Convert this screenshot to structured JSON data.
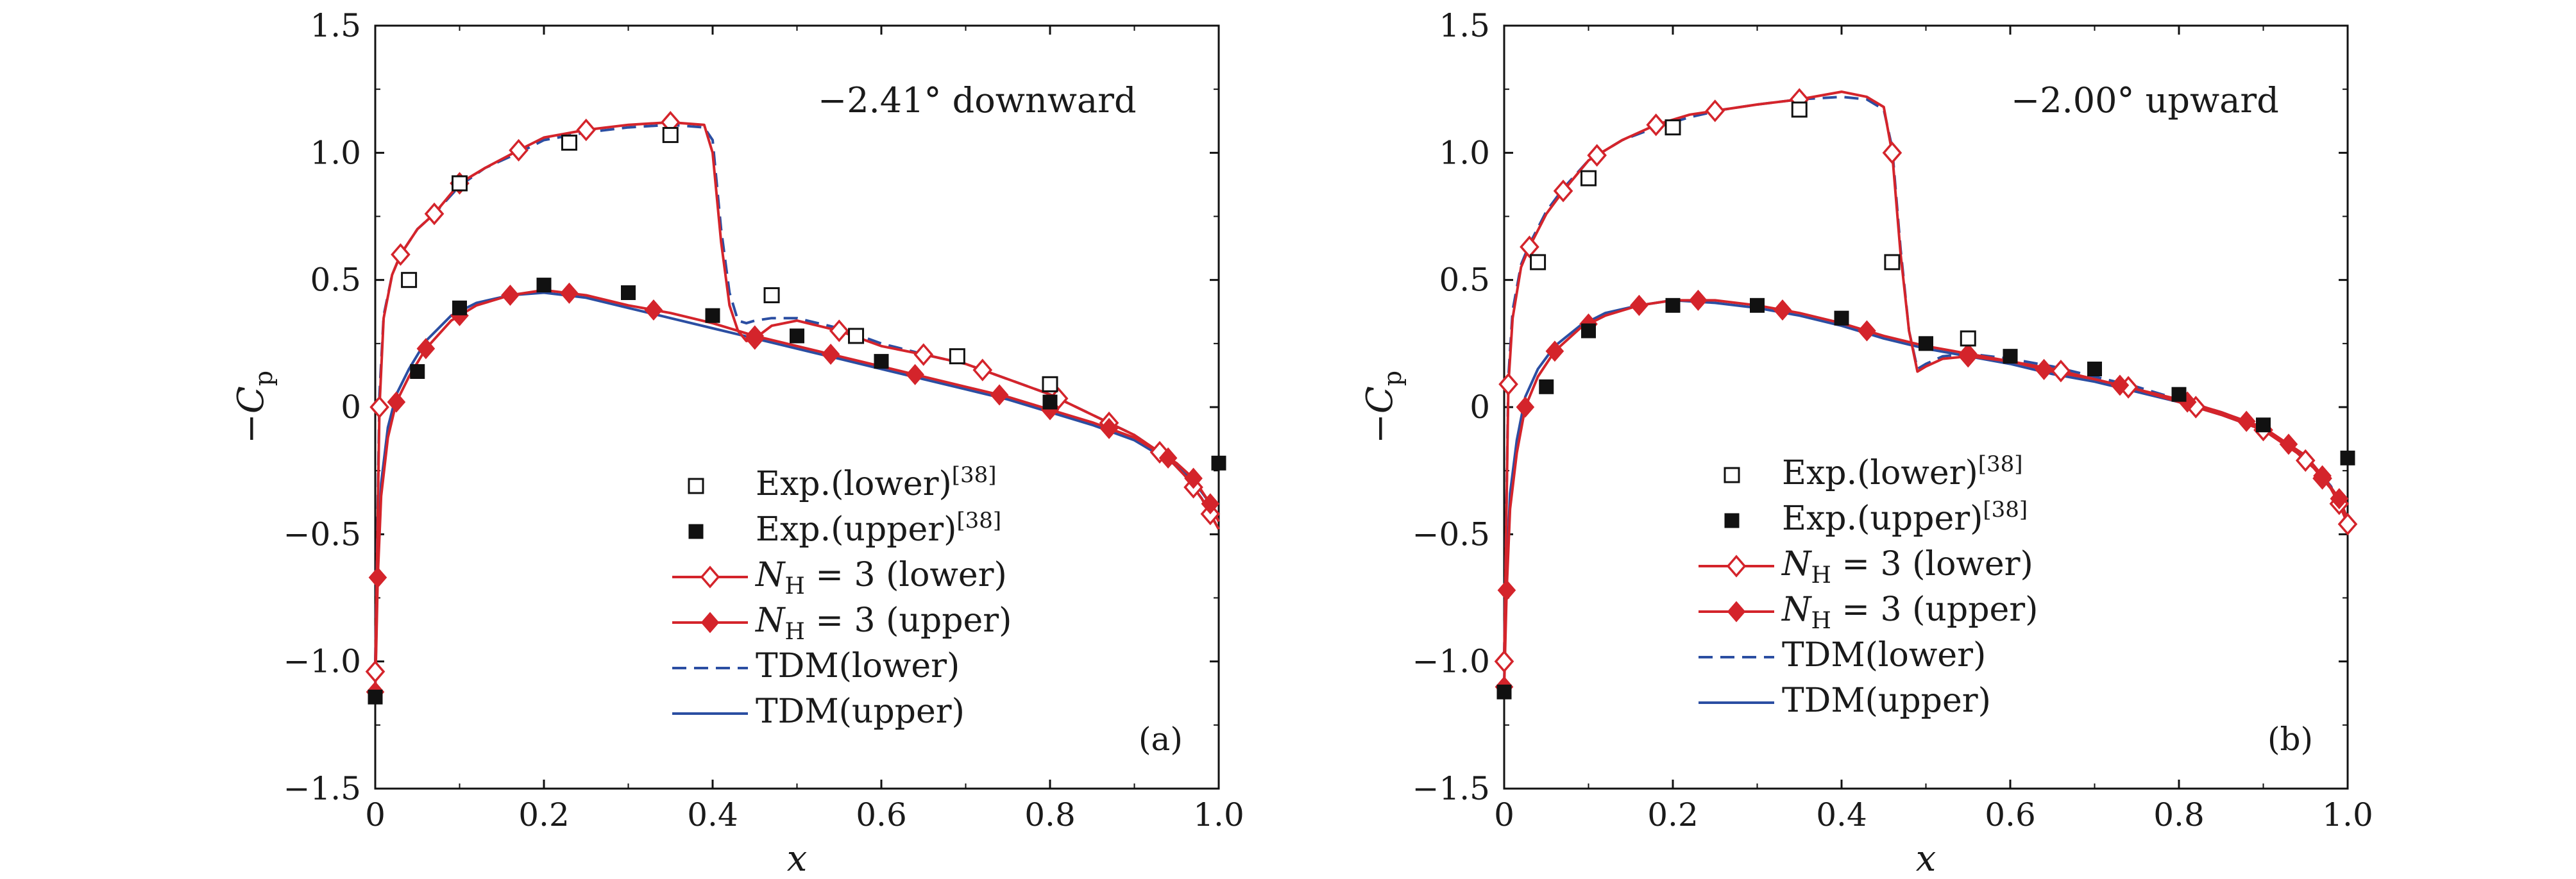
{
  "chart_data": [
    {
      "type": "line",
      "panel_tag": "(a)",
      "annotation": "−2.41° downward",
      "xlabel": "x",
      "ylabel": "−C",
      "ylabel_sub": "p",
      "xlim": [
        0,
        1.0
      ],
      "ylim": [
        -1.5,
        1.5
      ],
      "x_ticks": [
        "0",
        "0.2",
        "0.4",
        "0.6",
        "0.8",
        "1.0"
      ],
      "y_ticks": [
        "1.5",
        "1.0",
        "0.5",
        "0",
        "−0.5",
        "−1.0",
        "−1.5"
      ],
      "legend": [
        {
          "label": "Exp.(lower)",
          "sup": "[38]"
        },
        {
          "label": "Exp.(upper)",
          "sup": "[38]"
        },
        {
          "label_prefix": "N",
          "label_sub": "H",
          "label_rest": " = 3 (lower)"
        },
        {
          "label_prefix": "N",
          "label_sub": "H",
          "label_rest": " = 3 (upper)"
        },
        {
          "label": "TDM(lower)"
        },
        {
          "label": "TDM(upper)"
        }
      ],
      "series": {
        "exp_lower": {
          "x": [
            0.04,
            0.1,
            0.23,
            0.35,
            0.47,
            0.57,
            0.69,
            0.8
          ],
          "y": [
            0.5,
            0.88,
            1.04,
            1.07,
            0.44,
            0.28,
            0.2,
            0.09
          ]
        },
        "exp_upper": {
          "x": [
            0.0,
            0.05,
            0.1,
            0.2,
            0.3,
            0.4,
            0.5,
            0.6,
            0.8,
            1.0
          ],
          "y": [
            -1.14,
            0.14,
            0.39,
            0.48,
            0.45,
            0.36,
            0.28,
            0.18,
            0.02,
            -0.22
          ]
        },
        "nh3_lower": {
          "x": [
            0,
            0.005,
            0.01,
            0.02,
            0.03,
            0.05,
            0.07,
            0.1,
            0.13,
            0.17,
            0.2,
            0.25,
            0.3,
            0.35,
            0.39,
            0.4,
            0.41,
            0.42,
            0.43,
            0.44,
            0.45,
            0.47,
            0.5,
            0.55,
            0.6,
            0.66,
            0.7,
            0.75,
            0.8,
            0.85,
            0.9,
            0.94,
            0.96,
            0.98,
            0.99,
            1.0
          ],
          "y": [
            -1.04,
            0.0,
            0.35,
            0.52,
            0.6,
            0.7,
            0.76,
            0.88,
            0.94,
            1.01,
            1.06,
            1.09,
            1.11,
            1.12,
            1.11,
            1.0,
            0.65,
            0.4,
            0.3,
            0.26,
            0.27,
            0.32,
            0.34,
            0.3,
            0.24,
            0.2,
            0.17,
            0.11,
            0.05,
            -0.03,
            -0.11,
            -0.2,
            -0.27,
            -0.36,
            -0.42,
            -0.48
          ]
        },
        "nh3_lower_markers": [
          0.0,
          0.005,
          0.03,
          0.07,
          0.1,
          0.17,
          0.25,
          0.35,
          0.45,
          0.55,
          0.65,
          0.72,
          0.81,
          0.87,
          0.93,
          0.97,
          0.99
        ],
        "nh3_upper": {
          "x": [
            0,
            0.003,
            0.007,
            0.015,
            0.025,
            0.04,
            0.06,
            0.09,
            0.12,
            0.16,
            0.2,
            0.25,
            0.3,
            0.35,
            0.4,
            0.45,
            0.5,
            0.55,
            0.6,
            0.65,
            0.7,
            0.75,
            0.8,
            0.85,
            0.9,
            0.95,
            0.97,
            0.99,
            1.0
          ],
          "y": [
            -1.12,
            -0.67,
            -0.35,
            -0.12,
            0.02,
            0.12,
            0.23,
            0.34,
            0.4,
            0.44,
            0.46,
            0.44,
            0.4,
            0.37,
            0.33,
            0.28,
            0.24,
            0.2,
            0.16,
            0.12,
            0.08,
            0.04,
            -0.01,
            -0.06,
            -0.12,
            -0.22,
            -0.28,
            -0.38,
            -0.45
          ]
        },
        "nh3_upper_markers": [
          0.0,
          0.003,
          0.025,
          0.06,
          0.1,
          0.16,
          0.23,
          0.33,
          0.45,
          0.54,
          0.64,
          0.74,
          0.8,
          0.87,
          0.94,
          0.97,
          0.99
        ],
        "tdm_lower": {
          "x": [
            0,
            0.005,
            0.01,
            0.02,
            0.03,
            0.05,
            0.07,
            0.1,
            0.13,
            0.17,
            0.2,
            0.25,
            0.3,
            0.35,
            0.39,
            0.4,
            0.41,
            0.42,
            0.43,
            0.44,
            0.45,
            0.47,
            0.5,
            0.55,
            0.6,
            0.66,
            0.7,
            0.75,
            0.8,
            0.85,
            0.9,
            0.94,
            0.96,
            0.98,
            0.99,
            1.0
          ],
          "y": [
            -1.0,
            0.05,
            0.36,
            0.52,
            0.6,
            0.7,
            0.76,
            0.87,
            0.94,
            1.0,
            1.05,
            1.08,
            1.1,
            1.11,
            1.1,
            1.05,
            0.7,
            0.45,
            0.34,
            0.33,
            0.34,
            0.35,
            0.35,
            0.31,
            0.25,
            0.2,
            0.17,
            0.11,
            0.05,
            -0.03,
            -0.11,
            -0.2,
            -0.27,
            -0.36,
            -0.42,
            -0.48
          ]
        },
        "tdm_upper": {
          "x": [
            0,
            0.003,
            0.007,
            0.015,
            0.025,
            0.04,
            0.06,
            0.09,
            0.12,
            0.16,
            0.2,
            0.25,
            0.3,
            0.35,
            0.4,
            0.45,
            0.5,
            0.55,
            0.6,
            0.65,
            0.7,
            0.75,
            0.8,
            0.85,
            0.9,
            0.95,
            0.97,
            0.99,
            1.0
          ],
          "y": [
            -1.1,
            -0.62,
            -0.3,
            -0.08,
            0.05,
            0.15,
            0.26,
            0.36,
            0.41,
            0.44,
            0.45,
            0.43,
            0.39,
            0.35,
            0.31,
            0.27,
            0.23,
            0.19,
            0.15,
            0.11,
            0.07,
            0.03,
            -0.02,
            -0.07,
            -0.13,
            -0.23,
            -0.29,
            -0.38,
            -0.45
          ]
        }
      }
    },
    {
      "type": "line",
      "panel_tag": "(b)",
      "annotation": "−2.00° upward",
      "xlabel": "x",
      "ylabel": "−C",
      "ylabel_sub": "p",
      "xlim": [
        0,
        1.0
      ],
      "ylim": [
        -1.5,
        1.5
      ],
      "x_ticks": [
        "0",
        "0.2",
        "0.4",
        "0.6",
        "0.8",
        "1.0"
      ],
      "y_ticks": [
        "1.5",
        "1.0",
        "0.5",
        "0",
        "−0.5",
        "−1.0",
        "−1.5"
      ],
      "legend": [
        {
          "label": "Exp.(lower)",
          "sup": "[38]"
        },
        {
          "label": "Exp.(upper)",
          "sup": "[38]"
        },
        {
          "label_prefix": "N",
          "label_sub": "H",
          "label_rest": " = 3 (lower)"
        },
        {
          "label_prefix": "N",
          "label_sub": "H",
          "label_rest": " = 3 (upper)"
        },
        {
          "label": "TDM(lower)"
        },
        {
          "label": "TDM(upper)"
        }
      ],
      "series": {
        "exp_lower": {
          "x": [
            0.04,
            0.1,
            0.2,
            0.35,
            0.46,
            0.55
          ],
          "y": [
            0.57,
            0.9,
            1.1,
            1.17,
            0.57,
            0.27
          ]
        },
        "exp_upper": {
          "x": [
            0.0,
            0.05,
            0.1,
            0.2,
            0.3,
            0.4,
            0.5,
            0.6,
            0.7,
            0.8,
            0.9,
            1.0
          ],
          "y": [
            -1.12,
            0.08,
            0.3,
            0.4,
            0.4,
            0.35,
            0.25,
            0.2,
            0.15,
            0.05,
            -0.07,
            -0.2
          ]
        },
        "nh3_lower": {
          "x": [
            0,
            0.005,
            0.01,
            0.02,
            0.03,
            0.05,
            0.07,
            0.1,
            0.14,
            0.18,
            0.22,
            0.26,
            0.3,
            0.35,
            0.4,
            0.43,
            0.45,
            0.46,
            0.47,
            0.48,
            0.49,
            0.5,
            0.52,
            0.55,
            0.6,
            0.65,
            0.7,
            0.75,
            0.8,
            0.85,
            0.9,
            0.94,
            0.96,
            0.98,
            0.99,
            1.0
          ],
          "y": [
            -1.0,
            0.09,
            0.35,
            0.55,
            0.63,
            0.76,
            0.85,
            0.97,
            1.05,
            1.11,
            1.15,
            1.17,
            1.19,
            1.21,
            1.24,
            1.22,
            1.18,
            1.0,
            0.6,
            0.3,
            0.14,
            0.16,
            0.19,
            0.2,
            0.18,
            0.15,
            0.11,
            0.07,
            0.02,
            -0.03,
            -0.09,
            -0.18,
            -0.24,
            -0.32,
            -0.38,
            -0.46
          ]
        },
        "nh3_lower_markers": [
          0.0,
          0.005,
          0.03,
          0.07,
          0.11,
          0.18,
          0.25,
          0.35,
          0.46,
          0.55,
          0.66,
          0.74,
          0.82,
          0.9,
          0.95,
          0.97,
          0.99,
          1.0
        ],
        "nh3_upper": {
          "x": [
            0,
            0.003,
            0.007,
            0.015,
            0.025,
            0.04,
            0.06,
            0.09,
            0.12,
            0.16,
            0.2,
            0.25,
            0.3,
            0.35,
            0.4,
            0.45,
            0.5,
            0.55,
            0.6,
            0.65,
            0.7,
            0.75,
            0.8,
            0.85,
            0.9,
            0.95,
            0.97,
            0.99,
            1.0
          ],
          "y": [
            -1.1,
            -0.72,
            -0.4,
            -0.18,
            0.0,
            0.12,
            0.22,
            0.31,
            0.36,
            0.4,
            0.42,
            0.42,
            0.4,
            0.37,
            0.33,
            0.28,
            0.24,
            0.21,
            0.18,
            0.14,
            0.11,
            0.07,
            0.03,
            -0.02,
            -0.08,
            -0.19,
            -0.27,
            -0.36,
            -0.44
          ]
        },
        "nh3_upper_markers": [
          0.0,
          0.003,
          0.025,
          0.06,
          0.1,
          0.16,
          0.23,
          0.33,
          0.43,
          0.55,
          0.64,
          0.73,
          0.81,
          0.88,
          0.93,
          0.97,
          0.99
        ],
        "tdm_lower": {
          "x": [
            0,
            0.005,
            0.01,
            0.02,
            0.03,
            0.05,
            0.07,
            0.1,
            0.14,
            0.18,
            0.22,
            0.26,
            0.3,
            0.35,
            0.4,
            0.43,
            0.45,
            0.46,
            0.47,
            0.48,
            0.49,
            0.5,
            0.52,
            0.55,
            0.6,
            0.65,
            0.7,
            0.75,
            0.8,
            0.85,
            0.9,
            0.94,
            0.96,
            0.98,
            0.99,
            1.0
          ],
          "y": [
            -0.98,
            0.12,
            0.38,
            0.56,
            0.64,
            0.77,
            0.86,
            0.97,
            1.05,
            1.1,
            1.14,
            1.17,
            1.19,
            1.21,
            1.22,
            1.21,
            1.17,
            1.02,
            0.62,
            0.3,
            0.15,
            0.17,
            0.2,
            0.21,
            0.19,
            0.16,
            0.12,
            0.08,
            0.03,
            -0.02,
            -0.08,
            -0.17,
            -0.23,
            -0.31,
            -0.37,
            -0.45
          ]
        },
        "tdm_upper": {
          "x": [
            0,
            0.003,
            0.007,
            0.015,
            0.025,
            0.04,
            0.06,
            0.09,
            0.12,
            0.16,
            0.2,
            0.25,
            0.3,
            0.35,
            0.4,
            0.45,
            0.5,
            0.55,
            0.6,
            0.65,
            0.7,
            0.75,
            0.8,
            0.85,
            0.9,
            0.95,
            0.97,
            0.99,
            1.0
          ],
          "y": [
            -1.08,
            -0.66,
            -0.34,
            -0.13,
            0.04,
            0.15,
            0.24,
            0.32,
            0.37,
            0.4,
            0.42,
            0.41,
            0.39,
            0.36,
            0.32,
            0.27,
            0.23,
            0.2,
            0.17,
            0.13,
            0.1,
            0.06,
            0.02,
            -0.03,
            -0.09,
            -0.2,
            -0.27,
            -0.36,
            -0.44
          ]
        }
      }
    }
  ],
  "colors": {
    "red": "#d4242b",
    "blue": "#2b4ea2",
    "black": "#111111"
  }
}
